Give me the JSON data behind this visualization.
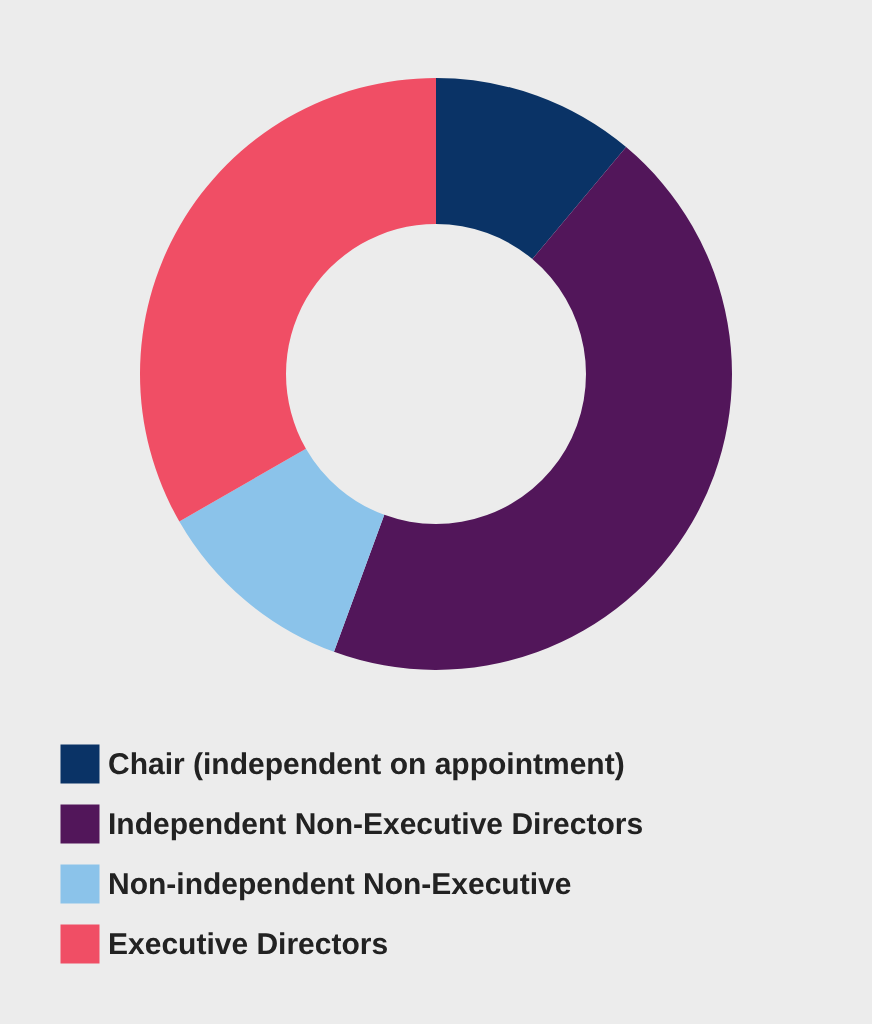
{
  "chart_data": {
    "type": "donut",
    "categories": [
      "Chair (independent on appointment)",
      "Independent Non-Executive Directors",
      "Non-independent Non-Executive",
      "Executive Directors"
    ],
    "values": [
      11.1,
      44.5,
      11.1,
      33.3
    ],
    "colors": [
      "#0a3366",
      "#52165a",
      "#8bc3ea",
      "#f04e65"
    ],
    "legend": "bottom"
  }
}
